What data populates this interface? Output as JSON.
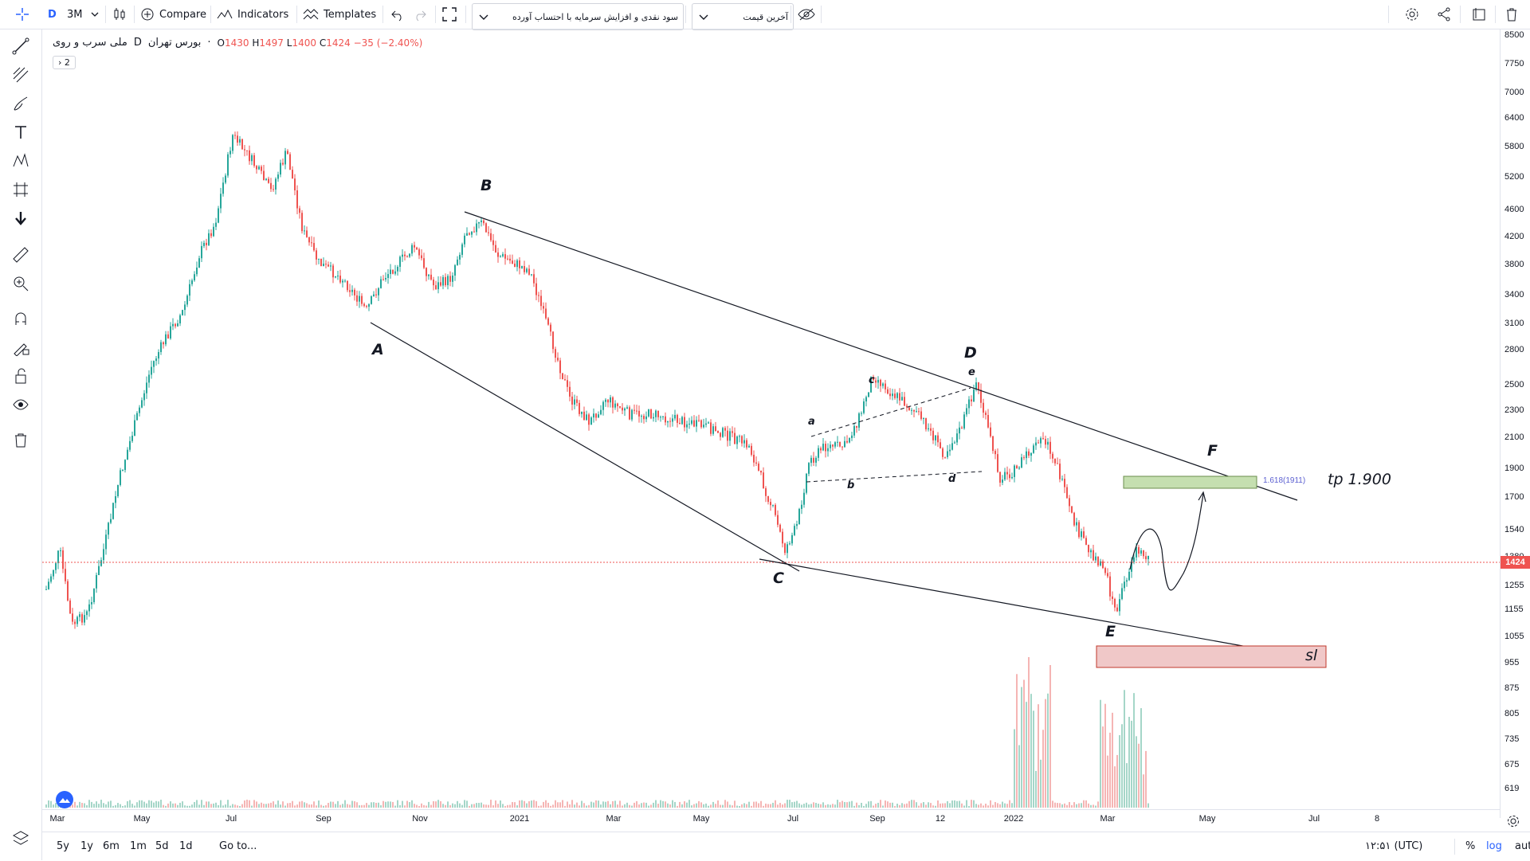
{
  "toolbar": {
    "symbol_letter": "D",
    "interval": "3M",
    "compare": "Compare",
    "indicators": "Indicators",
    "templates": "Templates",
    "dropdown1": "سود نقدی و افزایش سرمایه با احتساب آورده",
    "dropdown2": "آخرین قیمت"
  },
  "legend": {
    "name": "ملی سرب و روی",
    "interval": "D",
    "exchange": "بورس تهران",
    "dot": "·",
    "open_label": "O",
    "open": "1430",
    "high_label": "H",
    "high": "1497",
    "low_label": "L",
    "low": "1400",
    "close_label": "C",
    "close": "1424",
    "change": "−35 (−2.40%)",
    "collapse": "2"
  },
  "y_axis": [
    "8500",
    "7750",
    "7000",
    "6400",
    "5800",
    "5200",
    "4600",
    "4200",
    "3800",
    "3400",
    "3100",
    "2800",
    "2500",
    "2300",
    "2100",
    "1900",
    "1700",
    "1540",
    "1380",
    "1255",
    "1155",
    "1055",
    "955",
    "875",
    "805",
    "735",
    "675",
    "619"
  ],
  "price_label": "1424",
  "x_axis": [
    "Mar",
    "May",
    "Jul",
    "Sep",
    "Nov",
    "2021",
    "Mar",
    "May",
    "Jul",
    "Sep",
    "12",
    "2022",
    "Mar",
    "May",
    "Jul",
    "8"
  ],
  "annotations": {
    "A": "A",
    "B": "B",
    "C": "C",
    "D": "D",
    "E": "E",
    "F": "F",
    "a": "a",
    "b": "b",
    "c": "c",
    "d": "d",
    "e": "e",
    "fib": "1.618(1911)",
    "tp": "tp 1.900",
    "sl": "sl"
  },
  "bottom": {
    "ranges": [
      "5y",
      "1y",
      "6m",
      "1m",
      "5d",
      "1d"
    ],
    "goto": "Go to...",
    "time": "۱۲:۵۱ (UTC)",
    "percent": "%",
    "log": "log",
    "auto": "auto"
  },
  "colors": {
    "up": "#26a69a",
    "down": "#ef5350",
    "accent": "#2962ff",
    "tp_box": "#c5dfb0",
    "sl_box": "#f0c8c8"
  }
}
